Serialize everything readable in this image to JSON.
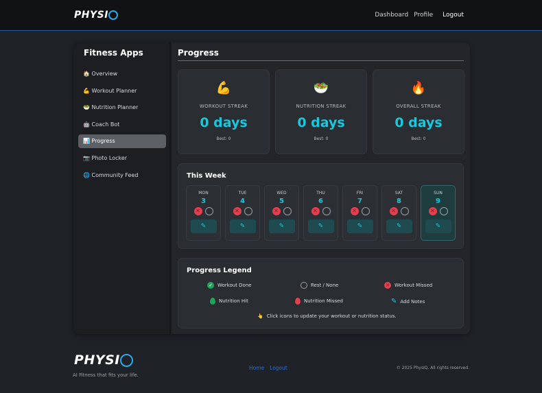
{
  "brand": {
    "logo_text": "PHYSI",
    "logo_q": "Q",
    "tagline": "AI Fitness that fits your life."
  },
  "nav": [
    "Dashboard",
    "Profile",
    "Logout"
  ],
  "sidebar": {
    "title": "Fitness Apps",
    "items": [
      {
        "icon": "🏠",
        "label": "Overview"
      },
      {
        "icon": "💪",
        "label": "Workout Planner"
      },
      {
        "icon": "🥗",
        "label": "Nutrition Planner"
      },
      {
        "icon": "🤖",
        "label": "Coach Bot"
      },
      {
        "icon": "📊",
        "label": "Progress",
        "active": true
      },
      {
        "icon": "📷",
        "label": "Photo Locker"
      },
      {
        "icon": "🌐",
        "label": "Community Feed"
      }
    ]
  },
  "page": {
    "title": "Progress"
  },
  "streaks": [
    {
      "icon": "💪",
      "label": "WORKOUT STREAK",
      "value": "0 days",
      "best": "Best: 0"
    },
    {
      "icon": "🥗",
      "label": "NUTRITION STREAK",
      "value": "0 days",
      "best": "Best: 0"
    },
    {
      "icon": "🔥",
      "label": "OVERALL STREAK",
      "value": "0 days",
      "best": "Best: 0"
    }
  ],
  "week": {
    "title": "This Week",
    "days": [
      {
        "name": "MON",
        "date": "3"
      },
      {
        "name": "TUE",
        "date": "4"
      },
      {
        "name": "WED",
        "date": "5"
      },
      {
        "name": "THU",
        "date": "6"
      },
      {
        "name": "FRI",
        "date": "7"
      },
      {
        "name": "SAT",
        "date": "8"
      },
      {
        "name": "SUN",
        "date": "9",
        "today": true
      }
    ]
  },
  "legend": {
    "title": "Progress Legend",
    "items": [
      "Workout Done",
      "Rest / None",
      "Workout Missed",
      "Nutrition Hit",
      "Nutrition Missed",
      "Add Notes"
    ],
    "hint": "Click icons to update your workout or nutrition status.",
    "hint_icon": "👆"
  },
  "footer": {
    "links": [
      "Home",
      "Logout"
    ],
    "copyright": "© 2025 PhysIQ. All rights reserved."
  },
  "colors": {
    "accent": "#19c8dc",
    "missed": "#e0404f",
    "done": "#22a45d",
    "link": "#2d6fd0"
  }
}
